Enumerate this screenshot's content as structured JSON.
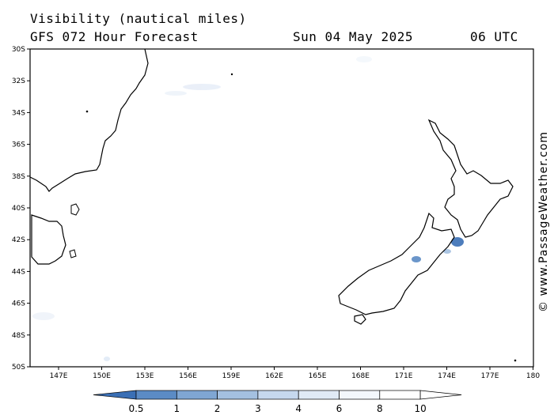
{
  "header": {
    "title": "Visibility (nautical miles)",
    "subtitle": "GFS 072 Hour Forecast",
    "date": "Sun 04 May 2025",
    "time": "06 UTC"
  },
  "map": {
    "lat_labels": [
      "30S",
      "32S",
      "34S",
      "36S",
      "38S",
      "40S",
      "42S",
      "44S",
      "46S",
      "48S",
      "50S"
    ],
    "lon_labels": [
      "147E",
      "150E",
      "153E",
      "156E",
      "159E",
      "162E",
      "165E",
      "168E",
      "171E",
      "174E",
      "177E",
      "180"
    ],
    "land_color": "#ffffff",
    "coastline_color": "#000000"
  },
  "legend": {
    "labels": [
      "0.5",
      "1",
      "2",
      "3",
      "4",
      "6",
      "8",
      "10"
    ],
    "colors": [
      "#3a6fb5",
      "#5b8bc5",
      "#7fa6d3",
      "#a4c0e0",
      "#c6d8ee",
      "#e0eaf6",
      "#f3f7fc",
      "#ffffff"
    ]
  },
  "watermark": "© www.PassageWeather.com"
}
